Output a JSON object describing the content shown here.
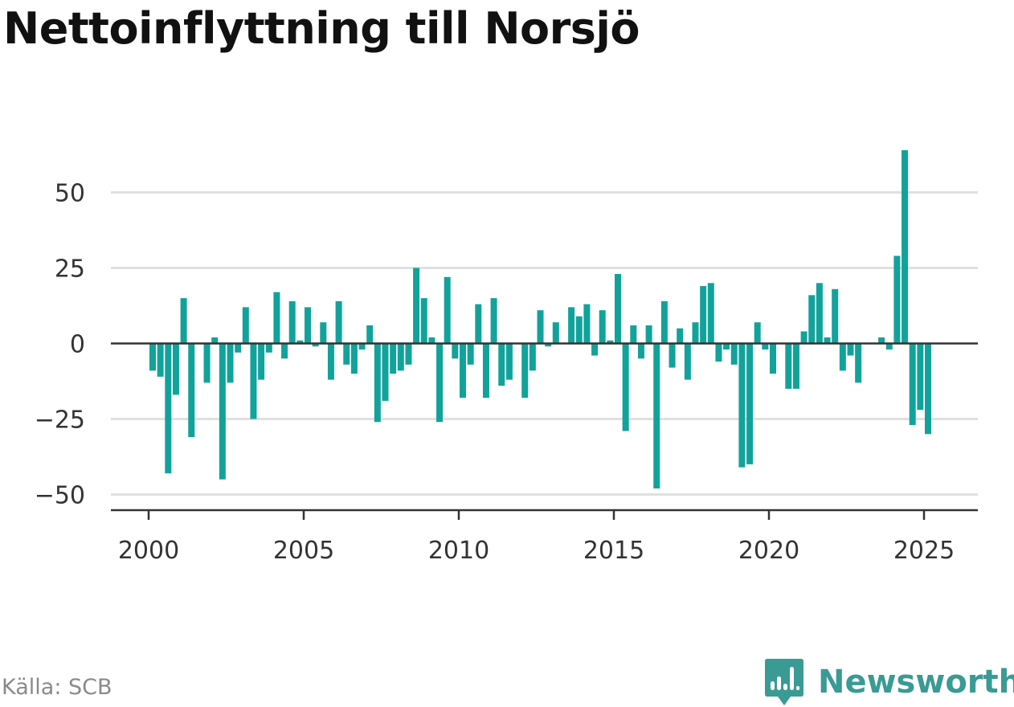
{
  "title": "Nettoinflyttning till Norsjö",
  "source": "Källa: SCB",
  "brand": "Newsworthy",
  "colors": {
    "bar": "#11a39b",
    "brand": "#3a9a94",
    "grid": "#e0e0e0",
    "axis": "#333333"
  },
  "chart_data": {
    "type": "bar",
    "title": "Nettoinflyttning till Norsjö",
    "xlabel": "",
    "ylabel": "",
    "ylim": [
      -50,
      63
    ],
    "xlim": [
      2000,
      2025.75
    ],
    "grid": true,
    "yticks": [
      50,
      25,
      0,
      -25,
      -50
    ],
    "ytick_labels": [
      "50",
      "25",
      "0",
      "−25",
      "−50"
    ],
    "xticks": [
      2000,
      2005,
      2010,
      2015,
      2020,
      2025
    ],
    "xtick_labels": [
      "2000",
      "2005",
      "2010",
      "2015",
      "2020",
      "2025"
    ],
    "period": "quarterly",
    "start": "2000 Q1",
    "values": [
      -9,
      -11,
      -43,
      -17,
      15,
      -31,
      0,
      -13,
      2,
      -45,
      -13,
      -3,
      12,
      -25,
      -12,
      -3,
      17,
      -5,
      14,
      1,
      12,
      -1,
      7,
      -12,
      14,
      -7,
      -10,
      -2,
      6,
      -26,
      -19,
      -10,
      -9,
      -7,
      25,
      15,
      2,
      -26,
      22,
      -5,
      -18,
      -7,
      13,
      -18,
      15,
      -14,
      -12,
      0,
      -18,
      -9,
      11,
      -1,
      7,
      0,
      12,
      9,
      13,
      -4,
      11,
      1,
      23,
      -29,
      6,
      -5,
      6,
      -48,
      14,
      -8,
      5,
      -12,
      7,
      19,
      20,
      -6,
      -2,
      -7,
      -41,
      -40,
      7,
      -2,
      -10,
      0,
      -15,
      -15,
      4,
      16,
      20,
      2,
      18,
      -9,
      -4,
      -13,
      0,
      0,
      2,
      -2,
      29,
      64,
      -27,
      -22,
      -30
    ]
  }
}
